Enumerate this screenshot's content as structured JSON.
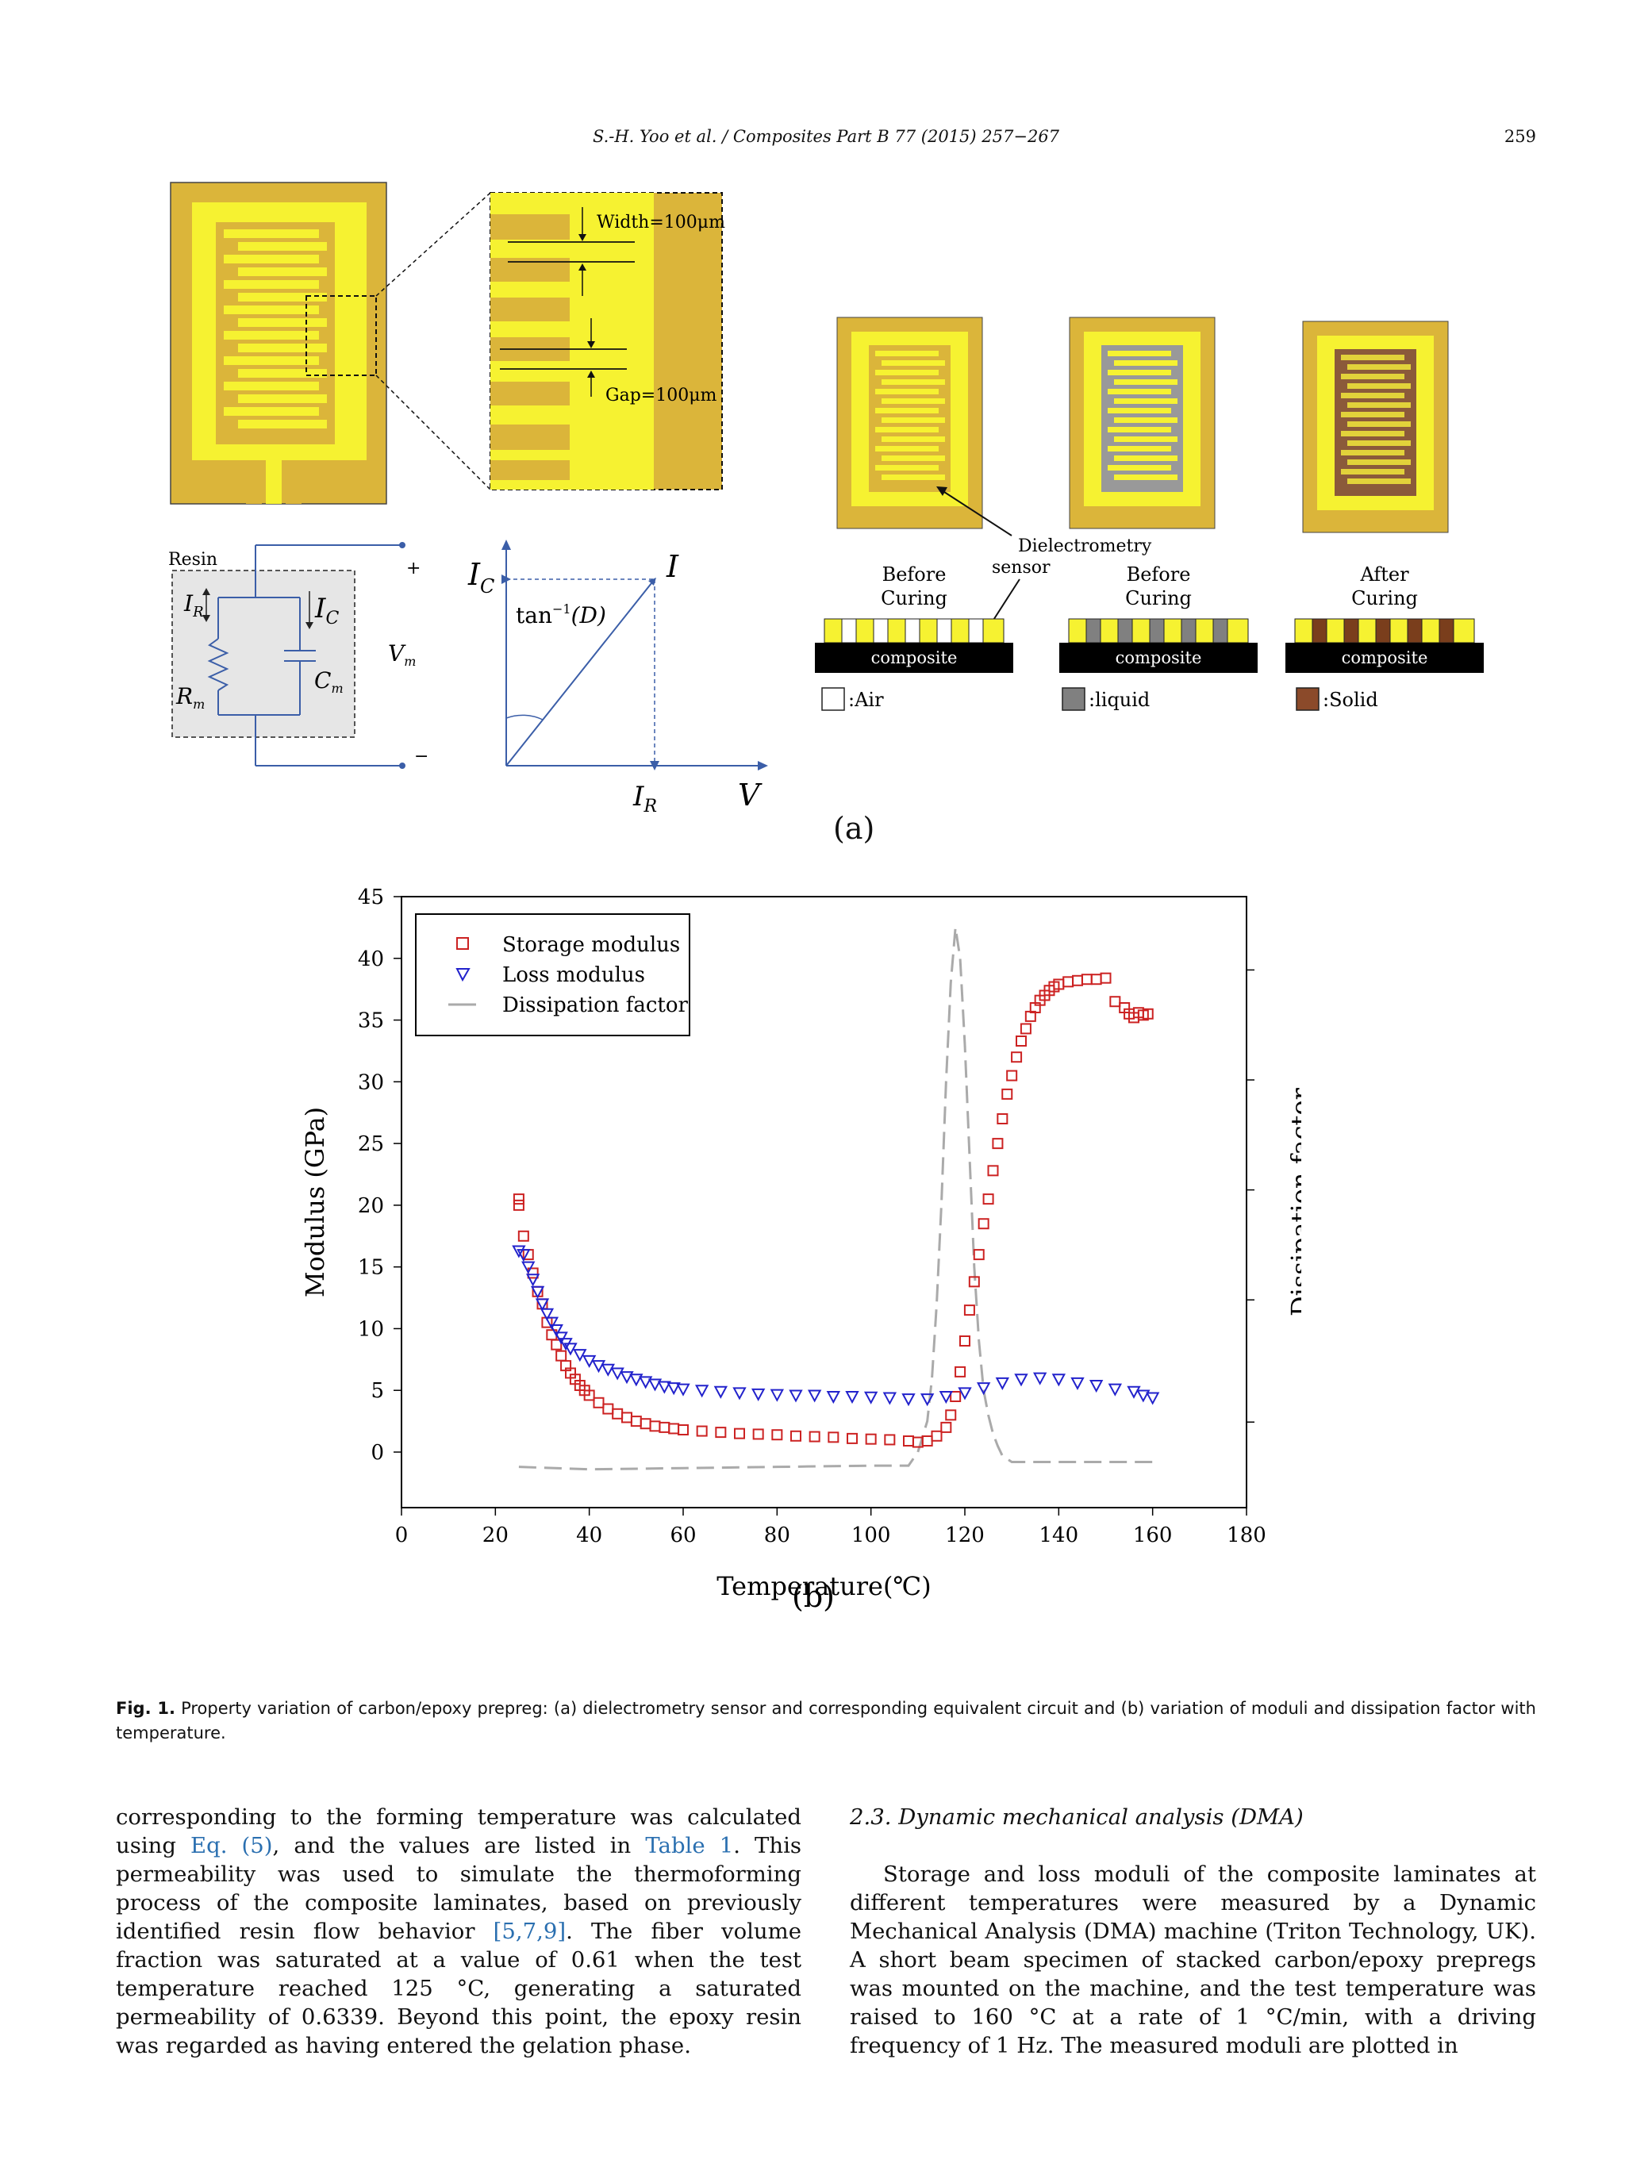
{
  "header": {
    "citation": "S.-H. Yoo et al. / Composites Part B 77 (2015) 257−267",
    "page_number": "259"
  },
  "figure_a": {
    "panel_label": "(a)",
    "width_label": "Width=100μm",
    "gap_label": "Gap=100μm",
    "dielectrometry_label_line1": "Dielectrometry",
    "dielectrometry_label_line2": "sensor",
    "stages": [
      {
        "line1": "Before",
        "line2": "Curing",
        "layer": "composite"
      },
      {
        "line1": "Before",
        "line2": "Curing",
        "layer": "composite"
      },
      {
        "line1": "After",
        "line2": "Curing",
        "layer": "composite"
      }
    ],
    "legend": [
      {
        "label": ":Air",
        "color": "#ffffff"
      },
      {
        "label": ":liquid",
        "color": "#808080"
      },
      {
        "label": ":Solid",
        "color": "#8b4a2a"
      }
    ],
    "circuit": {
      "resin_label": "Resin",
      "ir": "I",
      "ir_sub": "R",
      "ic": "I",
      "ic_sub": "C",
      "rm": "R",
      "rm_sub": "m",
      "cm": "C",
      "cm_sub": "m",
      "vm": "V",
      "vm_sub": "m",
      "plus": "+",
      "minus": "−"
    },
    "phasor": {
      "ic": "I",
      "ic_sub": "C",
      "i": "I",
      "tan_label": "tan",
      "tan_exp": "−1",
      "tan_arg": "(D)",
      "ir": "I",
      "ir_sub": "R",
      "v": "V"
    }
  },
  "chart_data": {
    "type": "scatter",
    "panel_label": "(b)",
    "xlabel": "Temperature(℃)",
    "ylabel": "Modulus (GPa)",
    "y2label": "Dissipation factor",
    "xlim": [
      0,
      180
    ],
    "ylim": [
      -4.5,
      45
    ],
    "xticks": [
      0,
      20,
      40,
      60,
      80,
      100,
      120,
      140,
      160,
      180
    ],
    "yticks": [
      0,
      5,
      10,
      15,
      20,
      25,
      30,
      35,
      40,
      45
    ],
    "legend_position": "top-left",
    "series": [
      {
        "name": "Storage modulus",
        "marker": "square",
        "color": "#cc2222",
        "points": [
          [
            25,
            20.5
          ],
          [
            25,
            20
          ],
          [
            26,
            17.5
          ],
          [
            27,
            16
          ],
          [
            28,
            14.5
          ],
          [
            29,
            13
          ],
          [
            30,
            12
          ],
          [
            31,
            10.5
          ],
          [
            32,
            9.5
          ],
          [
            33,
            8.7
          ],
          [
            34,
            7.8
          ],
          [
            35,
            7
          ],
          [
            36,
            6.4
          ],
          [
            37,
            5.9
          ],
          [
            38,
            5.4
          ],
          [
            39,
            5
          ],
          [
            40,
            4.6
          ],
          [
            42,
            4
          ],
          [
            44,
            3.5
          ],
          [
            46,
            3.1
          ],
          [
            48,
            2.8
          ],
          [
            50,
            2.5
          ],
          [
            52,
            2.3
          ],
          [
            54,
            2.1
          ],
          [
            56,
            2
          ],
          [
            58,
            1.9
          ],
          [
            60,
            1.8
          ],
          [
            64,
            1.7
          ],
          [
            68,
            1.6
          ],
          [
            72,
            1.5
          ],
          [
            76,
            1.45
          ],
          [
            80,
            1.4
          ],
          [
            84,
            1.3
          ],
          [
            88,
            1.25
          ],
          [
            92,
            1.2
          ],
          [
            96,
            1.1
          ],
          [
            100,
            1.05
          ],
          [
            104,
            1
          ],
          [
            108,
            0.9
          ],
          [
            110,
            0.8
          ],
          [
            112,
            0.9
          ],
          [
            114,
            1.3
          ],
          [
            116,
            2
          ],
          [
            117,
            3
          ],
          [
            118,
            4.5
          ],
          [
            119,
            6.5
          ],
          [
            120,
            9
          ],
          [
            121,
            11.5
          ],
          [
            122,
            13.8
          ],
          [
            123,
            16
          ],
          [
            124,
            18.5
          ],
          [
            125,
            20.5
          ],
          [
            126,
            22.8
          ],
          [
            127,
            25
          ],
          [
            128,
            27
          ],
          [
            129,
            29
          ],
          [
            130,
            30.5
          ],
          [
            131,
            32
          ],
          [
            132,
            33.3
          ],
          [
            133,
            34.3
          ],
          [
            134,
            35.3
          ],
          [
            135,
            36
          ],
          [
            136,
            36.6
          ],
          [
            137,
            37
          ],
          [
            138,
            37.4
          ],
          [
            139,
            37.7
          ],
          [
            140,
            37.9
          ],
          [
            142,
            38.1
          ],
          [
            144,
            38.2
          ],
          [
            146,
            38.3
          ],
          [
            148,
            38.3
          ],
          [
            150,
            38.4
          ],
          [
            152,
            36.5
          ],
          [
            154,
            36
          ],
          [
            155,
            35.5
          ],
          [
            156,
            35.2
          ],
          [
            157,
            35.6
          ],
          [
            158,
            35.4
          ],
          [
            159,
            35.5
          ]
        ]
      },
      {
        "name": "Loss modulus",
        "marker": "triangle-down",
        "color": "#2222cc",
        "points": [
          [
            25,
            16.3
          ],
          [
            26,
            16
          ],
          [
            27,
            15
          ],
          [
            28,
            14
          ],
          [
            29,
            13
          ],
          [
            30,
            12
          ],
          [
            31,
            11.2
          ],
          [
            32,
            10.5
          ],
          [
            33,
            9.9
          ],
          [
            34,
            9.3
          ],
          [
            35,
            8.8
          ],
          [
            36,
            8.4
          ],
          [
            38,
            7.9
          ],
          [
            40,
            7.4
          ],
          [
            42,
            7
          ],
          [
            44,
            6.7
          ],
          [
            46,
            6.4
          ],
          [
            48,
            6.1
          ],
          [
            50,
            5.9
          ],
          [
            52,
            5.7
          ],
          [
            54,
            5.5
          ],
          [
            56,
            5.3
          ],
          [
            58,
            5.2
          ],
          [
            60,
            5.1
          ],
          [
            64,
            5
          ],
          [
            68,
            4.9
          ],
          [
            72,
            4.8
          ],
          [
            76,
            4.7
          ],
          [
            80,
            4.65
          ],
          [
            84,
            4.6
          ],
          [
            88,
            4.6
          ],
          [
            92,
            4.5
          ],
          [
            96,
            4.5
          ],
          [
            100,
            4.45
          ],
          [
            104,
            4.4
          ],
          [
            108,
            4.3
          ],
          [
            112,
            4.3
          ],
          [
            116,
            4.5
          ],
          [
            120,
            4.8
          ],
          [
            124,
            5.2
          ],
          [
            128,
            5.6
          ],
          [
            132,
            5.9
          ],
          [
            136,
            6
          ],
          [
            140,
            5.9
          ],
          [
            144,
            5.6
          ],
          [
            148,
            5.4
          ],
          [
            152,
            5.1
          ],
          [
            156,
            4.9
          ],
          [
            158,
            4.6
          ],
          [
            160,
            4.4
          ]
        ]
      },
      {
        "name": "Dissipation factor",
        "marker": "dashed-line",
        "color": "#aaaaaa",
        "points": [
          [
            25,
            -1.2
          ],
          [
            40,
            -1.4
          ],
          [
            60,
            -1.3
          ],
          [
            80,
            -1.2
          ],
          [
            100,
            -1.1
          ],
          [
            108,
            -1.1
          ],
          [
            110,
            0
          ],
          [
            112,
            2.5
          ],
          [
            113,
            6
          ],
          [
            114,
            12
          ],
          [
            115,
            20
          ],
          [
            116,
            30
          ],
          [
            117,
            38
          ],
          [
            118,
            42.5
          ],
          [
            119,
            40
          ],
          [
            120,
            33
          ],
          [
            121,
            24
          ],
          [
            122,
            15
          ],
          [
            123,
            9
          ],
          [
            124,
            5
          ],
          [
            125,
            3
          ],
          [
            126,
            1.5
          ],
          [
            127,
            0.5
          ],
          [
            128,
            -0.3
          ],
          [
            130,
            -0.8
          ],
          [
            135,
            -0.8
          ],
          [
            140,
            -0.8
          ],
          [
            150,
            -0.8
          ],
          [
            160,
            -0.8
          ]
        ]
      }
    ]
  },
  "caption": {
    "label": "Fig. 1.",
    "text": " Property variation of carbon/epoxy prepreg: (a) dielectrometry sensor and corresponding equivalent circuit and (b) variation of moduli and dissipation factor with temperature."
  },
  "body_left": {
    "t1": "corresponding to the forming temperature was calculated using ",
    "l1": "Eq. (5)",
    "t2": ", and the values are listed in ",
    "l2": "Table 1",
    "t3": ". This permeability was used to simulate the thermoforming process of the composite laminates, based on previously identified resin flow behavior ",
    "l3": "[5,7,9]",
    "t4": ". The fiber volume fraction was saturated at a value of 0.61 when the test temperature reached 125 °C, generating a saturated permeability of 0.6339. Beyond this point, the epoxy resin was regarded as having entered the gelation phase."
  },
  "body_right": {
    "section_heading": "2.3. Dynamic mechanical analysis (DMA)",
    "paragraph": "Storage and loss moduli of the composite laminates at different temperatures were measured by a Dynamic Mechanical Analysis (DMA) machine (Triton Technology, UK). A short beam specimen of stacked carbon/epoxy prepregs was mounted on the machine, and the test temperature was raised to 160 °C at a rate of 1 °C/min, with a driving frequency of 1 Hz. The measured moduli are plotted in"
  }
}
